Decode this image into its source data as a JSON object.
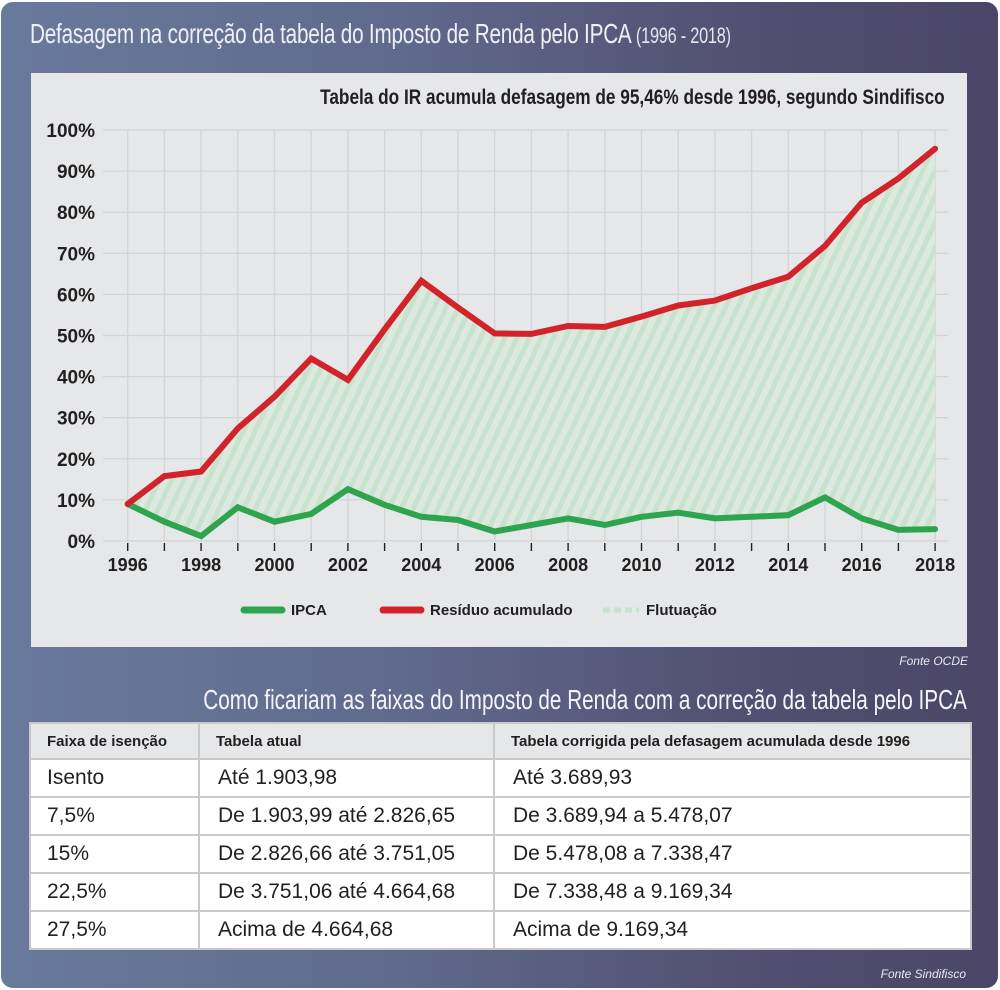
{
  "header": {
    "title": "Defasagem na correção da tabela do Imposto de Renda pelo IPCA",
    "title_years": "(1996 - 2018)"
  },
  "chart_data": {
    "type": "line",
    "title": "Tabela do IR acumula defasagem de 95,46% desde 1996, segundo Sindifisco",
    "xlabel": "",
    "ylabel": "",
    "x": [
      1996,
      1997,
      1998,
      1999,
      2000,
      2001,
      2002,
      2003,
      2004,
      2005,
      2006,
      2007,
      2008,
      2009,
      2010,
      2011,
      2012,
      2013,
      2014,
      2015,
      2016,
      2017,
      2018
    ],
    "x_tick_labels": [
      "1996",
      "1998",
      "2000",
      "2002",
      "2004",
      "2006",
      "2008",
      "2010",
      "2012",
      "2014",
      "2016",
      "2018"
    ],
    "y_tick_labels": [
      "0%",
      "10%",
      "20%",
      "30%",
      "40%",
      "50%",
      "60%",
      "70%",
      "80%",
      "90%",
      "100%"
    ],
    "xlim": [
      1996,
      2018
    ],
    "ylim": [
      0,
      100
    ],
    "grid": true,
    "legend_position": "bottom",
    "series": [
      {
        "name": "IPCA",
        "color": "#2ea44f",
        "values": [
          9.0,
          4.7,
          1.2,
          8.2,
          4.7,
          6.6,
          12.6,
          8.8,
          5.9,
          5.1,
          2.3,
          3.9,
          5.5,
          3.9,
          5.9,
          6.9,
          5.5,
          5.9,
          6.3,
          10.6,
          5.5,
          2.7,
          2.9
        ]
      },
      {
        "name": "Resíduo acumulado",
        "color": "#d2232a",
        "values": [
          9.0,
          15.8,
          16.9,
          27.4,
          35.1,
          44.4,
          39.2,
          51.5,
          63.3,
          56.8,
          50.5,
          50.4,
          52.3,
          52.1,
          54.6,
          57.3,
          58.5,
          61.5,
          64.3,
          71.8,
          82.3,
          88.2,
          95.46
        ]
      }
    ],
    "area": {
      "name": "Flutuação",
      "between": [
        "IPCA",
        "Resíduo acumulado"
      ],
      "colors": [
        "#c7e2cd",
        "#dde9df"
      ]
    }
  },
  "chart_source": "Fonte OCDE",
  "table": {
    "title": "Como ficariam as faixas do Imposto de Renda com a correção da tabela pelo IPCA",
    "headers": [
      "Faixa de isenção",
      "Tabela atual",
      "Tabela corrigida pela defasagem acumulada desde 1996"
    ],
    "rows": [
      [
        "Isento",
        "Até 1.903,98",
        "Até 3.689,93"
      ],
      [
        "7,5%",
        "De 1.903,99 até 2.826,65",
        "De 3.689,94 a 5.478,07"
      ],
      [
        "15%",
        "De 2.826,66 até 3.751,05",
        "De 5.478,08 a 7.338,47"
      ],
      [
        "22,5%",
        "De 3.751,06 até 4.664,68",
        "De 7.338,48 a 9.169,34"
      ],
      [
        "27,5%",
        "Acima de 4.664,68",
        "Acima de 9.169,34"
      ]
    ],
    "source": "Fonte Sindifisco"
  }
}
